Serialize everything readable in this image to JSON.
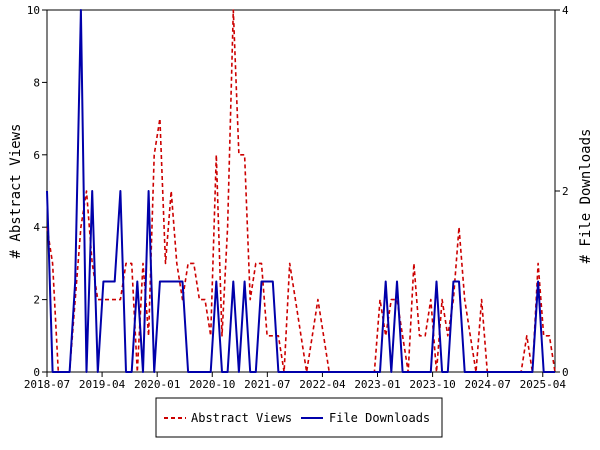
{
  "chart_data": {
    "type": "line",
    "title": "",
    "xlabel": "",
    "ylabel": "# Abstract Views",
    "y2label": "# File Downloads",
    "xlim": [
      0,
      83
    ],
    "ylim": [
      0,
      10
    ],
    "y2lim": [
      0,
      4
    ],
    "yticks": [
      0,
      2,
      4,
      6,
      8,
      10
    ],
    "y2ticks": [
      0,
      2,
      4
    ],
    "x_tick_positions": [
      0,
      9,
      18,
      27,
      36,
      45,
      54,
      63,
      72,
      81
    ],
    "x_tick_labels": [
      "2018-07",
      "2019-04",
      "2020-01",
      "2020-10",
      "2021-07",
      "2022-04",
      "2023-01",
      "2023-10",
      "2024-07",
      "2025-04"
    ],
    "grid": false,
    "legend_position": "bottom",
    "series": [
      {
        "name": "Abstract Views",
        "axis": "left",
        "color": "#cc0000",
        "style": "dashed",
        "values": [
          4,
          3,
          0,
          0,
          0,
          2,
          4,
          5,
          3,
          2,
          2,
          2,
          2,
          2,
          3,
          3,
          0,
          3,
          1,
          6,
          7,
          3,
          5,
          3,
          2,
          3,
          3,
          2,
          2,
          1,
          6,
          1,
          4,
          10,
          6,
          6,
          2,
          3,
          3,
          1,
          1,
          1,
          0,
          3,
          2,
          1,
          0,
          1,
          2,
          1,
          0,
          0,
          0,
          0,
          0,
          0,
          0,
          0,
          0,
          2,
          1,
          2,
          2,
          1,
          0,
          3,
          1,
          1,
          2,
          0,
          2,
          1,
          2,
          4,
          2,
          1,
          0,
          2,
          0,
          0,
          0,
          0,
          0,
          0,
          0,
          1,
          0,
          3,
          1,
          1,
          0
        ]
      },
      {
        "name": "File Downloads",
        "axis": "right",
        "color": "#0000aa",
        "style": "solid",
        "values": [
          2,
          0,
          0,
          0,
          0,
          1,
          4,
          0,
          2,
          0,
          1,
          1,
          1,
          2,
          0,
          0,
          1,
          0,
          2,
          0,
          1,
          1,
          1,
          1,
          1,
          0,
          0,
          0,
          0,
          0,
          1,
          0,
          0,
          1,
          0,
          1,
          0,
          0,
          1,
          1,
          1,
          0,
          0,
          0,
          0,
          0,
          0,
          0,
          0,
          0,
          0,
          0,
          0,
          0,
          0,
          0,
          0,
          0,
          0,
          0,
          1,
          0,
          1,
          0,
          0,
          0,
          0,
          0,
          0,
          1,
          0,
          0,
          1,
          1,
          0,
          0,
          0,
          0,
          0,
          0,
          0,
          0,
          0,
          0,
          0,
          0,
          0,
          1,
          0,
          0,
          0
        ]
      }
    ]
  }
}
